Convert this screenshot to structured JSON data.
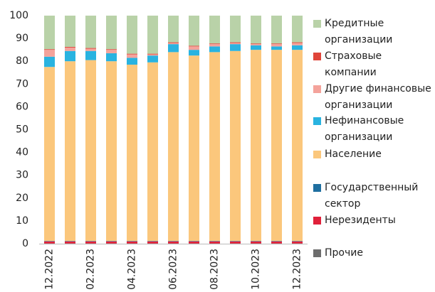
{
  "chart_data": {
    "type": "stacked_bar",
    "categories": [
      "12.2022",
      null,
      "02.2023",
      null,
      "04.2023",
      null,
      "06.2023",
      null,
      "08.2023",
      null,
      "10.2023",
      null,
      "12.2023"
    ],
    "series": [
      {
        "name": "Прочие",
        "color": "#6d6d6d",
        "values": [
          0.1,
          0.1,
          0.1,
          0.1,
          0.1,
          0.1,
          0.1,
          0.1,
          0.1,
          0.1,
          0.1,
          0.1,
          0.1
        ]
      },
      {
        "name": "Нерезиденты",
        "color": "#e0203a",
        "values": [
          0.9,
          0.9,
          0.9,
          0.9,
          0.9,
          0.9,
          0.9,
          0.9,
          0.9,
          0.9,
          0.9,
          0.9,
          0.9
        ]
      },
      {
        "name": "Государственный сектор",
        "color": "#1f6fa0",
        "values": [
          0.2,
          0.2,
          0.2,
          0.2,
          0.2,
          0.2,
          0.2,
          0.2,
          0.2,
          0.2,
          0.2,
          0.2,
          0.2
        ]
      },
      {
        "name": "Население",
        "color": "#fbc77c",
        "values": [
          76.3,
          78.8,
          79.3,
          78.8,
          77.3,
          78.3,
          82.8,
          81.3,
          82.8,
          83.3,
          83.8,
          83.8,
          83.8
        ]
      },
      {
        "name": "Нефинансовые организации",
        "color": "#29b3e0",
        "values": [
          4.5,
          4.5,
          4,
          3.5,
          3,
          3,
          3.5,
          2.5,
          2.5,
          3,
          2,
          1.5,
          2
        ]
      },
      {
        "name": "Другие финансовые организации",
        "color": "#f4a39b",
        "values": [
          3,
          1.5,
          1,
          1.5,
          1.5,
          0.5,
          0.5,
          1.5,
          1,
          0.5,
          0.5,
          1,
          1
        ]
      },
      {
        "name": "Страховые компании",
        "color": "#e0453a",
        "values": [
          0.3,
          0.3,
          0.3,
          0.3,
          0.3,
          0.3,
          0.3,
          0.3,
          0.3,
          0.3,
          0.3,
          0.3,
          0.3
        ]
      },
      {
        "name": "Кредитные организации",
        "color": "#b9d2a8",
        "values": [
          14.7,
          13.7,
          14.2,
          14.7,
          16.7,
          16.7,
          11.7,
          13.2,
          12.2,
          11.7,
          12.2,
          12.2,
          11.7
        ]
      }
    ],
    "ylim": [
      0,
      100
    ],
    "yticks": [
      0,
      10,
      20,
      30,
      40,
      50,
      60,
      70,
      80,
      90,
      100
    ]
  }
}
